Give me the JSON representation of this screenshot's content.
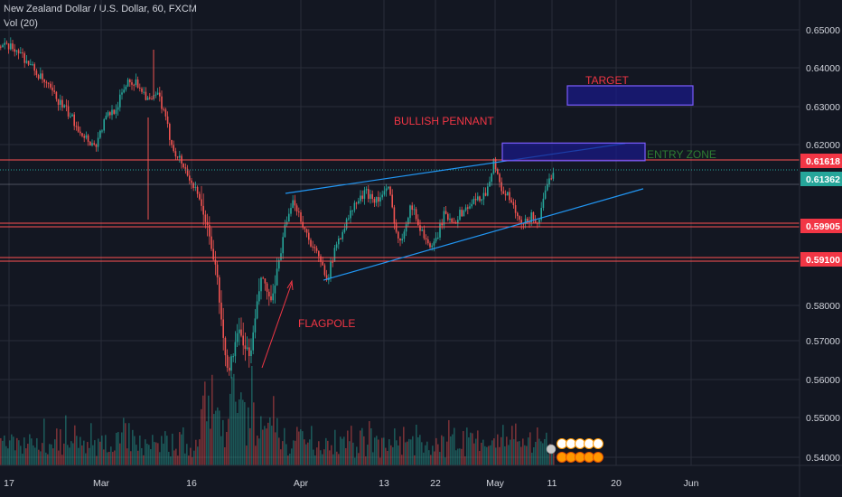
{
  "header": {
    "symbol_line": "New Zealand Dollar / U.S. Dollar, 60, FXCM",
    "indicator": "Vol (20)"
  },
  "colors": {
    "background": "#131722",
    "grid": "#2a2e39",
    "up": "#26a69a",
    "down": "#ef5350",
    "trendline": "#2196f3",
    "level_line": "#ff5252",
    "zone_fill": "#1a1a8c",
    "zone_border": "#7b5cff",
    "label_red": "#f23645",
    "label_green": "#2e7d32"
  },
  "chart_data": {
    "type": "candlestick",
    "x_ticks": [
      "17",
      "Mar",
      "16",
      "Apr",
      "13",
      "22",
      "May",
      "11",
      "20",
      "Jun"
    ],
    "y_ticks": [
      "0.65000",
      "0.64000",
      "0.63000",
      "0.62000",
      "0.58000",
      "0.57000",
      "0.56000",
      "0.55000",
      "0.54000"
    ],
    "ylim": [
      0.537,
      0.654
    ],
    "price_tags": [
      {
        "value": 0.61618,
        "label": "0.61618",
        "bg": "#f23645"
      },
      {
        "value": 0.61362,
        "label": "0.61362",
        "bg": "#26a69a"
      },
      {
        "value": 0.59905,
        "label": "0.59905",
        "bg": "#f23645"
      },
      {
        "value": 0.591,
        "label": "0.59100",
        "bg": "#f23645"
      }
    ],
    "key_path": [
      {
        "x": 0,
        "y": 0.6455
      },
      {
        "x": 3,
        "y": 0.6448
      },
      {
        "x": 6,
        "y": 0.6395
      },
      {
        "x": 9,
        "y": 0.634
      },
      {
        "x": 12,
        "y": 0.6285
      },
      {
        "x": 15,
        "y": 0.6225
      },
      {
        "x": 17,
        "y": 0.6195
      },
      {
        "x": 19,
        "y": 0.627
      },
      {
        "x": 21,
        "y": 0.63
      },
      {
        "x": 23,
        "y": 0.637
      },
      {
        "x": 25,
        "y": 0.6355
      },
      {
        "x": 27,
        "y": 0.631
      },
      {
        "x": 28.5,
        "y": 0.6332
      },
      {
        "x": 31,
        "y": 0.6195
      },
      {
        "x": 33,
        "y": 0.6145
      },
      {
        "x": 35,
        "y": 0.6085
      },
      {
        "x": 37,
        "y": 0.6005
      },
      {
        "x": 39,
        "y": 0.5865
      },
      {
        "x": 40,
        "y": 0.5715
      },
      {
        "x": 41,
        "y": 0.5605
      },
      {
        "x": 43,
        "y": 0.5715
      },
      {
        "x": 45,
        "y": 0.5645
      },
      {
        "x": 47,
        "y": 0.5855
      },
      {
        "x": 49,
        "y": 0.5785
      },
      {
        "x": 51,
        "y": 0.5965
      },
      {
        "x": 53,
        "y": 0.6055
      },
      {
        "x": 55,
        "y": 0.5975
      },
      {
        "x": 57,
        "y": 0.5915
      },
      {
        "x": 59,
        "y": 0.5855
      },
      {
        "x": 61,
        "y": 0.5955
      },
      {
        "x": 64,
        "y": 0.6045
      },
      {
        "x": 66,
        "y": 0.6075
      },
      {
        "x": 68,
        "y": 0.6055
      },
      {
        "x": 70,
        "y": 0.6085
      },
      {
        "x": 72,
        "y": 0.5935
      },
      {
        "x": 74,
        "y": 0.6045
      },
      {
        "x": 76,
        "y": 0.5975
      },
      {
        "x": 78,
        "y": 0.5925
      },
      {
        "x": 80,
        "y": 0.6015
      },
      {
        "x": 82,
        "y": 0.6005
      },
      {
        "x": 84,
        "y": 0.6035
      },
      {
        "x": 86,
        "y": 0.6055
      },
      {
        "x": 88,
        "y": 0.6085
      },
      {
        "x": 89,
        "y": 0.6165
      },
      {
        "x": 90,
        "y": 0.6095
      },
      {
        "x": 92,
        "y": 0.6055
      },
      {
        "x": 94,
        "y": 0.5985
      },
      {
        "x": 96,
        "y": 0.6015
      },
      {
        "x": 97,
        "y": 0.5995
      },
      {
        "x": 99,
        "y": 0.6105
      },
      {
        "x": 100,
        "y": 0.6145
      }
    ],
    "annotations": {
      "target": {
        "label": "TARGET",
        "y_range": [
          0.6303,
          0.6353
        ]
      },
      "entry": {
        "label": "ENTRY ZONE",
        "y_range": [
          0.6158,
          0.6204
        ]
      },
      "pattern": {
        "label": "BULLISH PENNANT"
      },
      "pole": {
        "label": "FLAGPOLE"
      },
      "upper_trendline": [
        {
          "y": 0.6073
        },
        {
          "y": 0.6203
        }
      ],
      "lower_trendline": [
        {
          "y": 0.5847
        },
        {
          "y": 0.6085
        }
      ]
    }
  }
}
